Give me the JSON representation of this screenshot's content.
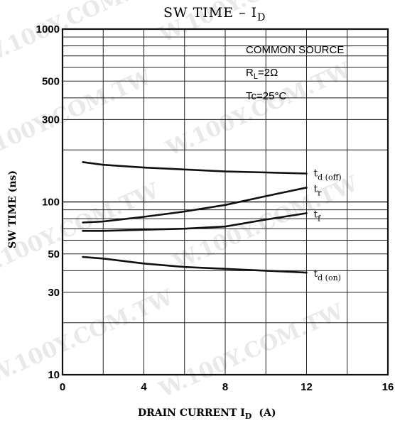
{
  "chart_data": {
    "type": "line",
    "title": "SW TIME  –  I",
    "title_sub": "D",
    "xlabel": "DRAIN CURRENT  I",
    "xlabel_sub": "D",
    "xlabel_unit": "(A)",
    "ylabel": "SW TIME   (ns)",
    "xlim": [
      0,
      16
    ],
    "ylim": [
      10,
      1000
    ],
    "yscale": "log",
    "grid": true,
    "x_ticks": [
      0,
      4,
      8,
      12,
      16
    ],
    "y_ticks": [
      10,
      30,
      50,
      100,
      300,
      500,
      1000
    ],
    "annotations": [
      "COMMON SOURCE",
      "R",
      "L",
      "=2Ω",
      "Tc=25°C"
    ],
    "series": [
      {
        "name": "t",
        "subscript": "d (off)",
        "x": [
          1,
          2,
          4,
          6,
          8,
          10,
          12
        ],
        "y": [
          170,
          164,
          158,
          154,
          150,
          148,
          146
        ]
      },
      {
        "name": "t",
        "subscript": "r",
        "x": [
          1,
          2,
          4,
          6,
          8,
          10,
          12
        ],
        "y": [
          76,
          77,
          82,
          88,
          96,
          108,
          121
        ]
      },
      {
        "name": "t",
        "subscript": "f",
        "x": [
          1,
          2,
          4,
          6,
          8,
          10,
          12
        ],
        "y": [
          68,
          68,
          69,
          70,
          72,
          79,
          86
        ]
      },
      {
        "name": "t",
        "subscript": "d (on)",
        "x": [
          1,
          2,
          4,
          6,
          8,
          10,
          12
        ],
        "y": [
          48,
          47,
          44,
          42,
          41,
          40,
          39
        ]
      }
    ]
  }
}
